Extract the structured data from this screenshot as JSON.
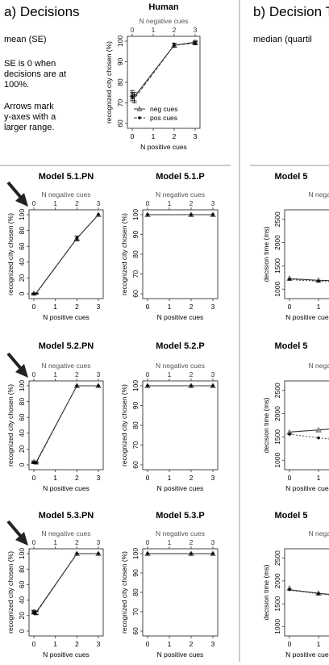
{
  "sections": {
    "a_title": "a) Decisions",
    "a_subtitle": "mean (SE)",
    "a_note": [
      "SE is 0 when",
      "decisions are at",
      "100%."
    ],
    "a_note2": [
      "Arrows mark",
      "y-axes with a",
      "larger range."
    ],
    "b_title": "b) Decision T",
    "b_subtitle": "median (quartil"
  },
  "colors": {
    "line": "#333333",
    "neg_marker": "#999999",
    "pos_marker": "#000000",
    "arrow": "#222222",
    "divider": "#999999"
  },
  "chart_data": [
    {
      "id": "human",
      "type": "line",
      "title": "Human",
      "xlabel": "N positive cues",
      "x2label": "N negative cues",
      "ylabel": "recognized city chosen (%)",
      "x": [
        0,
        0.1,
        2,
        3
      ],
      "x_ticks": [
        "0",
        "1",
        "2",
        "3"
      ],
      "x2_ticks": [
        "3",
        "2",
        "1",
        "0"
      ],
      "y_ticks": [
        "60",
        "70",
        "80",
        "90",
        "100"
      ],
      "ylim": [
        60,
        100
      ],
      "series": [
        {
          "name": "neg cues",
          "marker": "triangle",
          "values": [
            74,
            73,
            98,
            99.5
          ],
          "se": [
            2,
            2,
            1,
            0.8
          ]
        },
        {
          "name": "pos cues",
          "marker": "dot",
          "values": [
            73,
            72,
            98,
            99
          ],
          "se": [
            2,
            2,
            1,
            0.8
          ]
        }
      ],
      "legend": "bottom-right"
    },
    {
      "id": "m51pn",
      "type": "line",
      "title": "Model 5.1.PN",
      "arrow": true,
      "xlabel": "N positive cues",
      "x2label": "N negative cues",
      "ylabel": "recognized city chosen (%)",
      "x": [
        0,
        0.1,
        2,
        3
      ],
      "x_ticks": [
        "0",
        "1",
        "2",
        "3"
      ],
      "x2_ticks": [
        "3",
        "2",
        "1",
        "0"
      ],
      "y_ticks": [
        "0",
        "20",
        "40",
        "60",
        "80",
        "100"
      ],
      "ylim": [
        0,
        100
      ],
      "series": [
        {
          "name": "neg cues",
          "marker": "triangle",
          "values": [
            0.5,
            0.5,
            70,
            100
          ],
          "se": [
            0.5,
            0.5,
            3,
            0
          ]
        },
        {
          "name": "pos cues",
          "marker": "dot",
          "values": [
            0,
            0,
            70,
            100
          ],
          "se": [
            0.5,
            0.5,
            3,
            0
          ]
        }
      ]
    },
    {
      "id": "m51p",
      "type": "line",
      "title": "Model 5.1.P",
      "xlabel": "N positive cues",
      "x2label": "N negative cues",
      "ylabel": "recognized city chosen (%)",
      "x": [
        0,
        0.1,
        2,
        3
      ],
      "x_ticks": [
        "0",
        "1",
        "2",
        "3"
      ],
      "x2_ticks": [
        "3",
        "2",
        "1",
        "0"
      ],
      "y_ticks": [
        "60",
        "70",
        "80",
        "90",
        "100"
      ],
      "ylim": [
        60,
        100
      ],
      "series": [
        {
          "name": "neg cues",
          "marker": "triangle",
          "values": [
            100,
            100,
            100,
            100
          ],
          "se": [
            0,
            0,
            0,
            0
          ]
        },
        {
          "name": "pos cues",
          "marker": "dot",
          "values": [
            100,
            100,
            100,
            100
          ],
          "se": [
            0,
            0,
            0,
            0
          ]
        }
      ]
    },
    {
      "id": "m52pn",
      "type": "line",
      "title": "Model 5.2.PN",
      "arrow": true,
      "xlabel": "N positive cues",
      "x2label": "N negative cues",
      "ylabel": "recognized city chosen (%)",
      "x": [
        0,
        0.1,
        2,
        3
      ],
      "x_ticks": [
        "0",
        "1",
        "2",
        "3"
      ],
      "x2_ticks": [
        "3",
        "2",
        "1",
        "0"
      ],
      "y_ticks": [
        "0",
        "20",
        "40",
        "60",
        "80",
        "100"
      ],
      "ylim": [
        0,
        100
      ],
      "series": [
        {
          "name": "neg cues",
          "marker": "triangle",
          "values": [
            4,
            3,
            100,
            100
          ],
          "se": [
            1,
            1,
            0,
            0
          ]
        },
        {
          "name": "pos cues",
          "marker": "dot",
          "values": [
            3,
            2,
            100,
            100
          ],
          "se": [
            1,
            1,
            0,
            0
          ]
        }
      ]
    },
    {
      "id": "m52p",
      "type": "line",
      "title": "Model 5.2.P",
      "xlabel": "N positive cues",
      "x2label": "N negative cues",
      "ylabel": "recognized city chosen (%)",
      "x": [
        0,
        0.1,
        2,
        3
      ],
      "x_ticks": [
        "0",
        "1",
        "2",
        "3"
      ],
      "x2_ticks": [
        "3",
        "2",
        "1",
        "0"
      ],
      "y_ticks": [
        "60",
        "70",
        "80",
        "90",
        "100"
      ],
      "ylim": [
        60,
        100
      ],
      "series": [
        {
          "name": "neg cues",
          "marker": "triangle",
          "values": [
            100,
            100,
            100,
            100
          ],
          "se": [
            0,
            0,
            0,
            0
          ]
        },
        {
          "name": "pos cues",
          "marker": "dot",
          "values": [
            100,
            100,
            100,
            100
          ],
          "se": [
            0,
            0,
            0,
            0
          ]
        }
      ]
    },
    {
      "id": "m53pn",
      "type": "line",
      "title": "Model 5.3.PN",
      "arrow": true,
      "xlabel": "N positive cues",
      "x2label": "N negative cues",
      "ylabel": "recognized city chosen (%)",
      "x": [
        0,
        0.1,
        2,
        3
      ],
      "x_ticks": [
        "0",
        "1",
        "2",
        "3"
      ],
      "x2_ticks": [
        "3",
        "2",
        "1",
        "0"
      ],
      "y_ticks": [
        "0",
        "20",
        "40",
        "60",
        "80",
        "100"
      ],
      "ylim": [
        0,
        100
      ],
      "series": [
        {
          "name": "neg cues",
          "marker": "triangle",
          "values": [
            25,
            24,
            100,
            100
          ],
          "se": [
            2,
            2,
            0,
            0
          ]
        },
        {
          "name": "pos cues",
          "marker": "dot",
          "values": [
            24,
            23,
            100,
            100
          ],
          "se": [
            2,
            2,
            0,
            0
          ]
        }
      ]
    },
    {
      "id": "m53p",
      "type": "line",
      "title": "Model 5.3.P",
      "xlabel": "N positive cues",
      "x2label": "N negative cues",
      "ylabel": "recognized city chosen (%)",
      "x": [
        0,
        0.1,
        2,
        3
      ],
      "x_ticks": [
        "0",
        "1",
        "2",
        "3"
      ],
      "x2_ticks": [
        "3",
        "2",
        "1",
        "0"
      ],
      "y_ticks": [
        "60",
        "70",
        "80",
        "90",
        "100"
      ],
      "ylim": [
        60,
        100
      ],
      "series": [
        {
          "name": "neg cues",
          "marker": "triangle",
          "values": [
            100,
            100,
            100,
            100
          ],
          "se": [
            0,
            0,
            0,
            0
          ]
        },
        {
          "name": "pos cues",
          "marker": "dot",
          "values": [
            100,
            100,
            100,
            100
          ],
          "se": [
            0,
            0,
            0,
            0
          ]
        }
      ]
    },
    {
      "id": "t51",
      "type": "line",
      "title": "Model 5",
      "xlabel": "N positive cues",
      "x2label": "N negative cues",
      "ylabel": "decision time (ms)",
      "x": [
        0,
        0.1,
        1,
        1.6
      ],
      "x_ticks": [
        "0",
        "1"
      ],
      "x2_ticks": [
        "3",
        "2"
      ],
      "y_ticks": [
        "1000",
        "1500",
        "2000",
        "2500"
      ],
      "ylim": [
        900,
        2600
      ],
      "series": [
        {
          "name": "neg cues",
          "marker": "triangle",
          "values": [
            1230,
            1220,
            1190,
            1180
          ]
        },
        {
          "name": "pos cues",
          "marker": "dot",
          "values": [
            1210,
            1200,
            1170,
            1160
          ]
        }
      ]
    },
    {
      "id": "t52",
      "type": "line",
      "title": "Model 5",
      "xlabel": "N positive cues",
      "x2label": "N negative cues",
      "ylabel": "decision time (ms)",
      "x": [
        0,
        0.1,
        1,
        1.6
      ],
      "x_ticks": [
        "0",
        "1"
      ],
      "x2_ticks": [
        "3",
        "2"
      ],
      "y_ticks": [
        "1000",
        "1500",
        "2000",
        "2500"
      ],
      "ylim": [
        900,
        2600
      ],
      "series": [
        {
          "name": "neg cues",
          "marker": "triangle",
          "values": [
            1600,
            1610,
            1650,
            1680
          ]
        },
        {
          "name": "pos cues",
          "marker": "dot",
          "values": [
            1560,
            1550,
            1480,
            1440
          ]
        }
      ]
    },
    {
      "id": "t53",
      "type": "line",
      "title": "Model 5",
      "xlabel": "N positive cues",
      "x2label": "N negative cues",
      "ylabel": "decision time (ms)",
      "x": [
        0,
        0.1,
        1,
        1.6
      ],
      "x_ticks": [
        "0",
        "1"
      ],
      "x2_ticks": [
        "3",
        "2"
      ],
      "y_ticks": [
        "1000",
        "1500",
        "2000",
        "2500"
      ],
      "ylim": [
        900,
        2600
      ],
      "series": [
        {
          "name": "neg cues",
          "marker": "triangle",
          "values": [
            1840,
            1800,
            1730,
            1690
          ]
        },
        {
          "name": "pos cues",
          "marker": "dot",
          "values": [
            1810,
            1790,
            1720,
            1680
          ]
        }
      ]
    }
  ]
}
